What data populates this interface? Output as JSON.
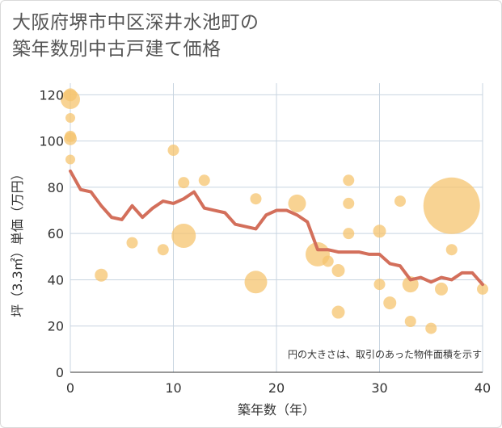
{
  "title_lines": [
    "大阪府堺市中区深井水池町の",
    "築年数別中古戸建て価格"
  ],
  "note": "円の大きさは、取引のあった物件面積を示す",
  "colors": {
    "line": "#d36f5b",
    "bubble": "#f5c46f",
    "grid": "#c8d4e0",
    "plot_bg": "#ffffff"
  },
  "chart_data": {
    "type": "scatter",
    "xlabel": "築年数（年）",
    "ylabel": "坪（3.3㎡）単価（万円）",
    "xlim": [
      0,
      40
    ],
    "ylim": [
      0,
      125
    ],
    "xticks": [
      0,
      10,
      20,
      30,
      40
    ],
    "yticks": [
      0,
      20,
      40,
      60,
      80,
      100,
      120
    ],
    "grid": true,
    "trend_line": {
      "x": [
        0,
        1,
        2,
        3,
        4,
        5,
        6,
        7,
        8,
        9,
        10,
        11,
        12,
        13,
        14,
        15,
        16,
        17,
        18,
        19,
        20,
        21,
        22,
        23,
        24,
        25,
        26,
        27,
        28,
        29,
        30,
        31,
        32,
        33,
        34,
        35,
        36,
        37,
        38,
        39,
        40
      ],
      "y": [
        87,
        79,
        78,
        72,
        67,
        66,
        72,
        67,
        71,
        74,
        73,
        75,
        78,
        71,
        70,
        69,
        64,
        63,
        62,
        68,
        70,
        70,
        68,
        65,
        53,
        53,
        52,
        52,
        52,
        51,
        51,
        47,
        46,
        40,
        41,
        39,
        41,
        40,
        43,
        43,
        38
      ]
    },
    "bubbles": [
      {
        "x": 0,
        "y": 120,
        "size": 8
      },
      {
        "x": 0,
        "y": 118,
        "size": 12
      },
      {
        "x": 0,
        "y": 110,
        "size": 6
      },
      {
        "x": 0,
        "y": 102,
        "size": 7
      },
      {
        "x": 0,
        "y": 101,
        "size": 8
      },
      {
        "x": 0,
        "y": 92,
        "size": 6
      },
      {
        "x": 3,
        "y": 42,
        "size": 8
      },
      {
        "x": 6,
        "y": 56,
        "size": 7
      },
      {
        "x": 9,
        "y": 53,
        "size": 7
      },
      {
        "x": 10,
        "y": 96,
        "size": 7
      },
      {
        "x": 11,
        "y": 82,
        "size": 7
      },
      {
        "x": 11,
        "y": 59,
        "size": 15
      },
      {
        "x": 13,
        "y": 83,
        "size": 7
      },
      {
        "x": 18,
        "y": 75,
        "size": 7
      },
      {
        "x": 18,
        "y": 39,
        "size": 14
      },
      {
        "x": 22,
        "y": 73,
        "size": 11
      },
      {
        "x": 24,
        "y": 51,
        "size": 15
      },
      {
        "x": 25,
        "y": 48,
        "size": 7
      },
      {
        "x": 26,
        "y": 44,
        "size": 8
      },
      {
        "x": 26,
        "y": 26,
        "size": 8
      },
      {
        "x": 27,
        "y": 83,
        "size": 7
      },
      {
        "x": 27,
        "y": 73,
        "size": 7
      },
      {
        "x": 27,
        "y": 60,
        "size": 7
      },
      {
        "x": 30,
        "y": 61,
        "size": 8
      },
      {
        "x": 30,
        "y": 38,
        "size": 7
      },
      {
        "x": 31,
        "y": 30,
        "size": 8
      },
      {
        "x": 32,
        "y": 74,
        "size": 7
      },
      {
        "x": 33,
        "y": 38,
        "size": 10
      },
      {
        "x": 33,
        "y": 22,
        "size": 7
      },
      {
        "x": 35,
        "y": 19,
        "size": 7
      },
      {
        "x": 36,
        "y": 36,
        "size": 8
      },
      {
        "x": 37,
        "y": 72,
        "size": 35
      },
      {
        "x": 37,
        "y": 53,
        "size": 7
      },
      {
        "x": 40,
        "y": 36,
        "size": 7
      }
    ]
  }
}
